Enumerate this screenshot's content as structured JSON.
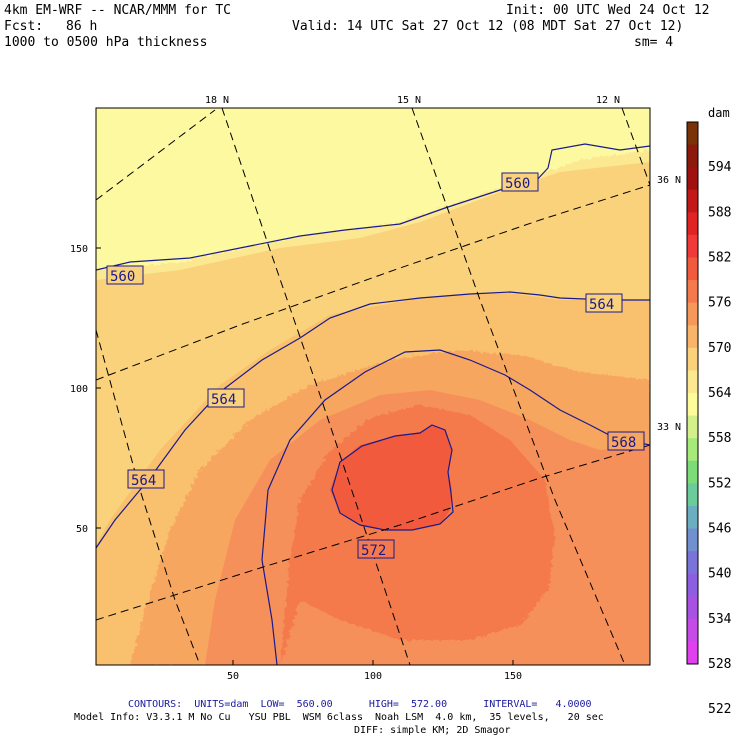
{
  "header": {
    "model": "4km EM-WRF -- NCAR/MMM for TC",
    "init": "Init: 00 UTC Wed 24 Oct 12",
    "fcst_label": "Fcst:",
    "fcst_value": "86 h",
    "valid": "Valid: 14 UTC Sat 27 Oct 12 (08 MDT Sat 27 Oct 12)",
    "field": "1000 to 0500 hPa thickness",
    "smoothing": "sm= 4"
  },
  "map": {
    "lat_labels_top": [
      "18 N",
      "15 N",
      "12 N"
    ],
    "lat_labels_right": [
      "36 N",
      "33 N"
    ],
    "x_ticks": [
      "50",
      "100",
      "150"
    ],
    "y_ticks": [
      "150",
      "100",
      "50"
    ],
    "contour_labels": [
      "560",
      "560",
      "564",
      "564",
      "564",
      "568",
      "572"
    ]
  },
  "colorbar": {
    "unit": "dam",
    "levels": [
      "594",
      "588",
      "582",
      "576",
      "570",
      "564",
      "558",
      "552",
      "546",
      "540",
      "534",
      "528",
      "522"
    ],
    "colors": [
      "#7a3206",
      "#8b1a0d",
      "#a01010",
      "#c21818",
      "#e02424",
      "#f03a3a",
      "#f25a3e",
      "#f47a4e",
      "#f6985a",
      "#f8b468",
      "#fad27c",
      "#fbe890",
      "#fdfb9a",
      "#d4f08a",
      "#a6ea7a",
      "#7cdc78",
      "#6ccb9a",
      "#6aaec0",
      "#7090d0",
      "#7a74da",
      "#8e5ee0",
      "#a852e4",
      "#c64ae8",
      "#e040ee"
    ]
  },
  "footer": {
    "contours": "CONTOURS:  UNITS=dam  LOW=  560.00      HIGH=  572.00      INTERVAL=   4.0000",
    "model_info": "Model Info: V3.3.1 M No Cu   YSU PBL  WSM 6class  Noah LSM  4.0 km,  35 levels,   20 sec",
    "diff": "DIFF: simple KM; 2D Smagor"
  }
}
